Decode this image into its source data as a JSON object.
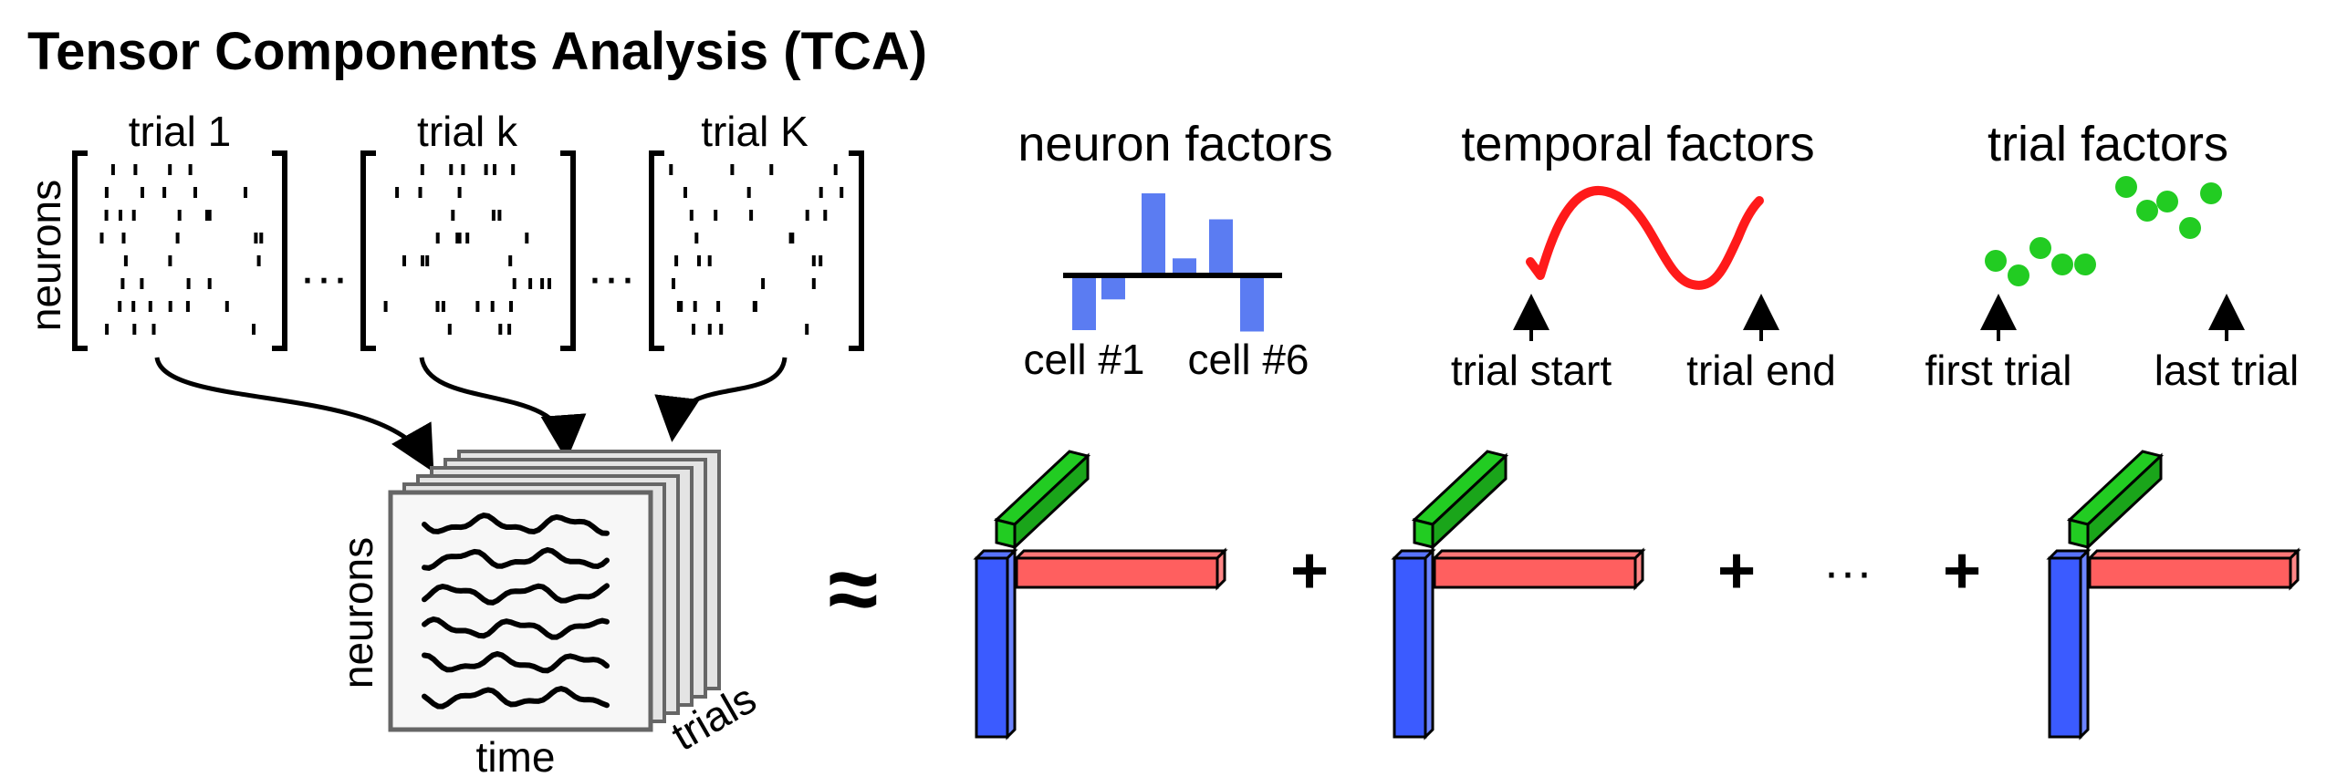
{
  "title": "Tensor Components Analysis (TCA)",
  "trials": {
    "labels": [
      "trial 1",
      "trial k",
      "trial K"
    ],
    "axis_label": "neurons",
    "ellipsis": "···"
  },
  "tensor": {
    "neurons_label": "neurons",
    "time_label": "time",
    "trials_label": "trials"
  },
  "factors": {
    "neuron": {
      "title": "neuron factors",
      "left_label": "cell #1",
      "right_label": "cell #6",
      "values": [
        -0.8,
        -0.35,
        1.2,
        0.25,
        0.82,
        -0.82
      ]
    },
    "temporal": {
      "title": "temporal factors",
      "start_label": "trial start",
      "end_label": "trial end"
    },
    "trial": {
      "title": "trial factors",
      "first_label": "first trial",
      "last_label": "last trial"
    }
  },
  "equation": {
    "approx": "≈",
    "plus": "+",
    "ellipsis": "···"
  },
  "colors": {
    "neuron": "#5b7cf2",
    "temporal": "#ff1a1a",
    "trial": "#22cc22",
    "bar_blue": "#3b5bff",
    "bar_red": "#ff5f5f",
    "bar_green": "#22cc22"
  }
}
